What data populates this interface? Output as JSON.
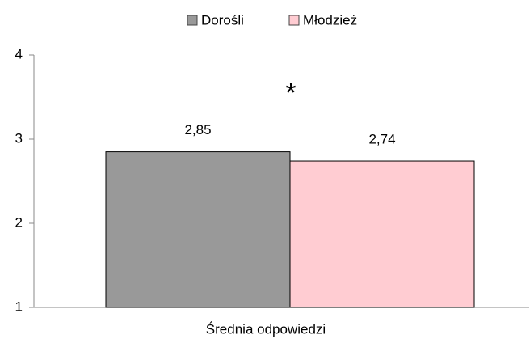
{
  "chart_data": {
    "type": "bar",
    "categories": [
      "Średnia odpowiedzi"
    ],
    "series": [
      {
        "name": "Dorośli",
        "color": "#999999",
        "values": [
          2.85
        ],
        "value_labels": [
          "2,85"
        ]
      },
      {
        "name": "Młodzież",
        "color": "#ffccd2",
        "values": [
          2.74
        ],
        "value_labels": [
          "2,74"
        ]
      }
    ],
    "annotations": [
      "*"
    ],
    "ylim": [
      1,
      4
    ],
    "yticks": [
      1,
      2,
      3,
      4
    ],
    "grid": false,
    "legend": "top"
  }
}
